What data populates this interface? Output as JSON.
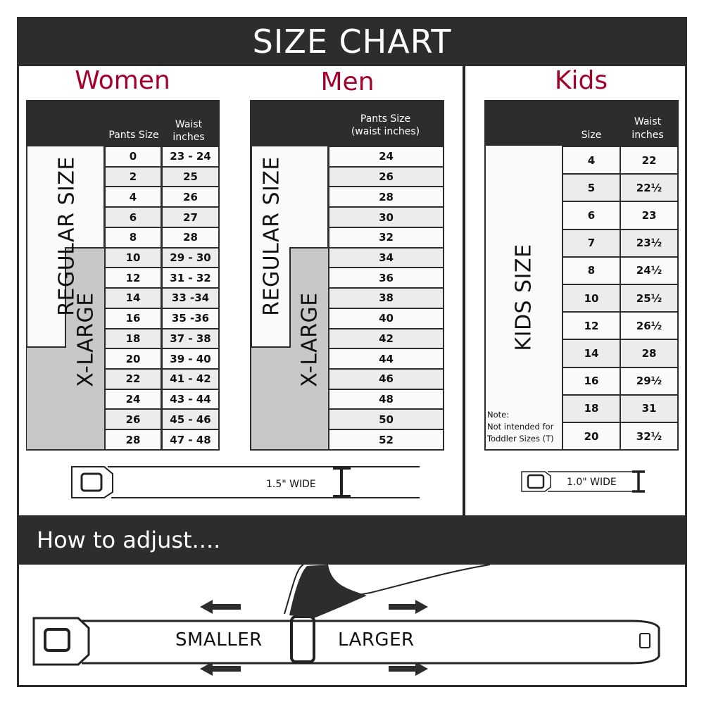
{
  "header": {
    "title": "SIZE CHART"
  },
  "women": {
    "title": "Women",
    "col_pants": "Pants Size",
    "col_waist": "Waist inches",
    "label_regular": "REGULAR SIZE",
    "label_xlarge": "X-LARGE",
    "rows": [
      [
        "0",
        "23 - 24"
      ],
      [
        "2",
        "25"
      ],
      [
        "4",
        "26"
      ],
      [
        "6",
        "27"
      ],
      [
        "8",
        "28"
      ],
      [
        "10",
        "29 - 30"
      ],
      [
        "12",
        "31 - 32"
      ],
      [
        "14",
        "33 -34"
      ],
      [
        "16",
        "35 -36"
      ],
      [
        "18",
        "37 - 38"
      ],
      [
        "20",
        "39 - 40"
      ],
      [
        "22",
        "41 - 42"
      ],
      [
        "24",
        "43 - 44"
      ],
      [
        "26",
        "45 - 46"
      ],
      [
        "28",
        "47 - 48"
      ]
    ],
    "belt_width": "1.5\" WIDE"
  },
  "men": {
    "title": "Men",
    "col_pants": "Pants Size (waist inches)",
    "label_regular": "REGULAR SIZE",
    "label_xlarge": "X-LARGE",
    "rows": [
      "24",
      "26",
      "28",
      "30",
      "32",
      "34",
      "36",
      "38",
      "40",
      "42",
      "44",
      "46",
      "48",
      "50",
      "52"
    ]
  },
  "kids": {
    "title": "Kids",
    "col_size": "Size",
    "col_waist": "Waist inches",
    "label": "KIDS SIZE",
    "note_title": "Note:",
    "note_text": "Not intended for Toddler Sizes (T)",
    "rows": [
      [
        "4",
        "22"
      ],
      [
        "5",
        "22½"
      ],
      [
        "6",
        "23"
      ],
      [
        "7",
        "23½"
      ],
      [
        "8",
        "24½"
      ],
      [
        "10",
        "25½"
      ],
      [
        "12",
        "26½"
      ],
      [
        "14",
        "28"
      ],
      [
        "16",
        "29½"
      ],
      [
        "18",
        "31"
      ],
      [
        "20",
        "32½"
      ]
    ],
    "belt_width": "1.0\" WIDE"
  },
  "adjust": {
    "title": "How to adjust....",
    "smaller": "SMALLER",
    "larger": "LARGER"
  },
  "colors": {
    "accent": "#a4002c",
    "dark": "#2d2d2d",
    "xlarge_fill": "#c8c8c8",
    "row_alt": "#ececec"
  }
}
